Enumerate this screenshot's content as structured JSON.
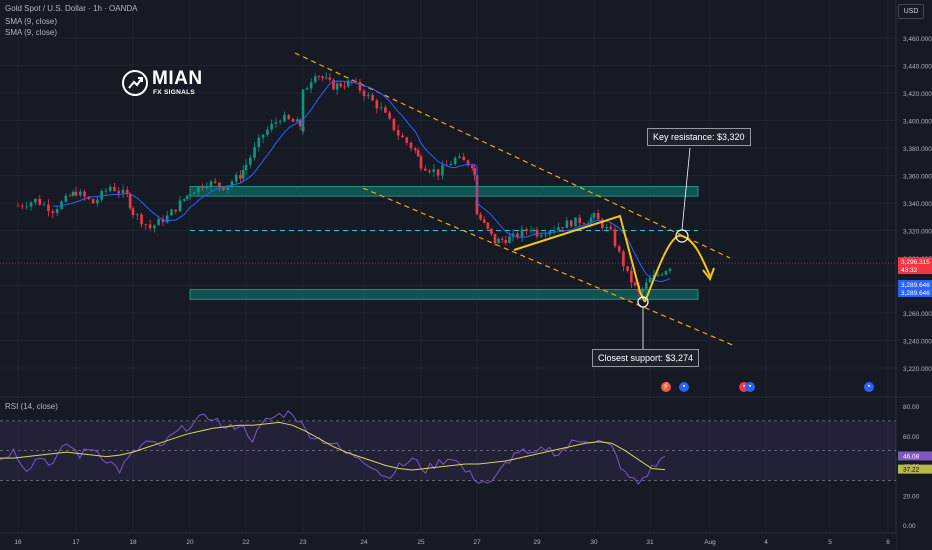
{
  "header": {
    "symbol_line": "Gold Spot / U.S. Dollar · 1h · OANDA",
    "sma_line_1": "SMA (9, close)",
    "sma_line_2": "SMA (9, close)",
    "currency": "USD"
  },
  "logo": {
    "title": "MIAN",
    "subtitle": "FX SIGNALS"
  },
  "annotations": {
    "resistance_label": "Key resistance: $3,320",
    "support_label": "Closest support: $3,274"
  },
  "rsi_panel": {
    "legend": "RSI (14, close)",
    "rsi_value": "46.08",
    "rsi_ma_value": "37.22",
    "y_ticks": [
      "80.00",
      "60.00",
      "40.00",
      "20.00",
      "0.00"
    ]
  },
  "price_badges": {
    "last": "3,296.315",
    "countdown": "43:32",
    "sma1": "3,289.646",
    "sma2": "3,289.646"
  },
  "colors": {
    "up": "#089981",
    "down": "#f23645",
    "sma": "#2962ff",
    "rsi": "#7e57c2",
    "rsi_ma": "#d7d756",
    "zone": "#0f5e58",
    "channel": "#f7a600",
    "projection": "#f5c518"
  },
  "chart_data": {
    "type": "candlestick",
    "instrument": "Gold Spot / U.S. Dollar",
    "timeframe": "1h",
    "y_ticks": [
      "3,460.000",
      "3,440.000",
      "3,420.000",
      "3,400.000",
      "3,380.000",
      "3,360.000",
      "3,340.000",
      "3,320.000",
      "3,300.000",
      "3,280.000",
      "3,260.000",
      "3,240.000",
      "3,220.000"
    ],
    "x_ticks": [
      "16",
      "17",
      "18",
      "20",
      "21",
      "22",
      "23",
      "24",
      "25",
      "27",
      "28",
      "29",
      "30",
      "31",
      "Aug",
      "4",
      "5",
      "6"
    ],
    "ylim": [
      3215,
      3470
    ],
    "close_path": [
      [
        16,
        3338
      ],
      [
        16.3,
        3342
      ],
      [
        16.6,
        3335
      ],
      [
        16.9,
        3345
      ],
      [
        17,
        3348
      ],
      [
        17.3,
        3340
      ],
      [
        17.6,
        3352
      ],
      [
        17.9,
        3345
      ],
      [
        18,
        3333
      ],
      [
        18.3,
        3322
      ],
      [
        18.6,
        3330
      ],
      [
        18.9,
        3343
      ],
      [
        20,
        3348
      ],
      [
        20.3,
        3355
      ],
      [
        20.6,
        3352
      ],
      [
        20.9,
        3360
      ],
      [
        21,
        3368
      ],
      [
        21.3,
        3390
      ],
      [
        21.6,
        3402
      ],
      [
        21.9,
        3398
      ],
      [
        22,
        3395
      ],
      [
        22.3,
        3390
      ],
      [
        22.6,
        3402
      ],
      [
        22.9,
        3400
      ],
      [
        23,
        3420
      ],
      [
        23.2,
        3435
      ],
      [
        23.5,
        3425
      ],
      [
        23.8,
        3428
      ],
      [
        24,
        3420
      ],
      [
        24.3,
        3408
      ],
      [
        24.6,
        3390
      ],
      [
        24.9,
        3378
      ],
      [
        25,
        3368
      ],
      [
        25.3,
        3362
      ],
      [
        25.6,
        3372
      ],
      [
        25.9,
        3368
      ],
      [
        27,
        3352
      ],
      [
        27.3,
        3342
      ],
      [
        27.6,
        3338
      ],
      [
        27.9,
        3342
      ],
      [
        28,
        3332
      ],
      [
        28.3,
        3312
      ],
      [
        28.6,
        3315
      ],
      [
        28.9,
        3322
      ],
      [
        29,
        3318
      ],
      [
        29.3,
        3322
      ],
      [
        29.6,
        3326
      ],
      [
        29.9,
        3328
      ],
      [
        30,
        3330
      ],
      [
        30.3,
        3318
      ],
      [
        30.6,
        3288
      ],
      [
        30.8,
        3274
      ],
      [
        31,
        3284
      ],
      [
        31.2,
        3290
      ],
      [
        31.4,
        3296.3
      ]
    ],
    "sma": {
      "name": "SMA (9, close)",
      "last": 3289.646
    },
    "zones": [
      {
        "label": "resistance zone",
        "from": 3345,
        "to": 3352,
        "start": 20,
        "end": 31.8
      },
      {
        "label": "support zone",
        "from": 3270,
        "to": 3277,
        "start": 20,
        "end": 31.8
      }
    ],
    "key_resistance": 3320,
    "closest_support": 3274,
    "rsi": {
      "name": "RSI (14, close)",
      "ylim": [
        0,
        85
      ],
      "y_ticks": [
        "80.00",
        "60.00",
        "40.00",
        "20.00",
        "0.00"
      ],
      "bands": [
        70,
        30
      ],
      "values": [
        44,
        50,
        38,
        46,
        41,
        55,
        47,
        52,
        44,
        37,
        48,
        56,
        52,
        60,
        66,
        71,
        73,
        64,
        68,
        58,
        70,
        74,
        76,
        63,
        58,
        55,
        48,
        46,
        40,
        32,
        39,
        44,
        37,
        42,
        46,
        36,
        30,
        28,
        41,
        50,
        46,
        52,
        48,
        55,
        58,
        56,
        52,
        34,
        28,
        38,
        46
      ],
      "ma_values": [
        45,
        45,
        46,
        47,
        48,
        49,
        48,
        47,
        46,
        47,
        49,
        52,
        55,
        58,
        61,
        63,
        65,
        66,
        67,
        67,
        68,
        69,
        67,
        63,
        58,
        53,
        49,
        46,
        43,
        40,
        38,
        37,
        38,
        39,
        40,
        41,
        41,
        42,
        43,
        45,
        47,
        49,
        51,
        53,
        55,
        56,
        55,
        50,
        44,
        38,
        37.22
      ],
      "last": 46.08,
      "ma_last": 37.22
    }
  }
}
